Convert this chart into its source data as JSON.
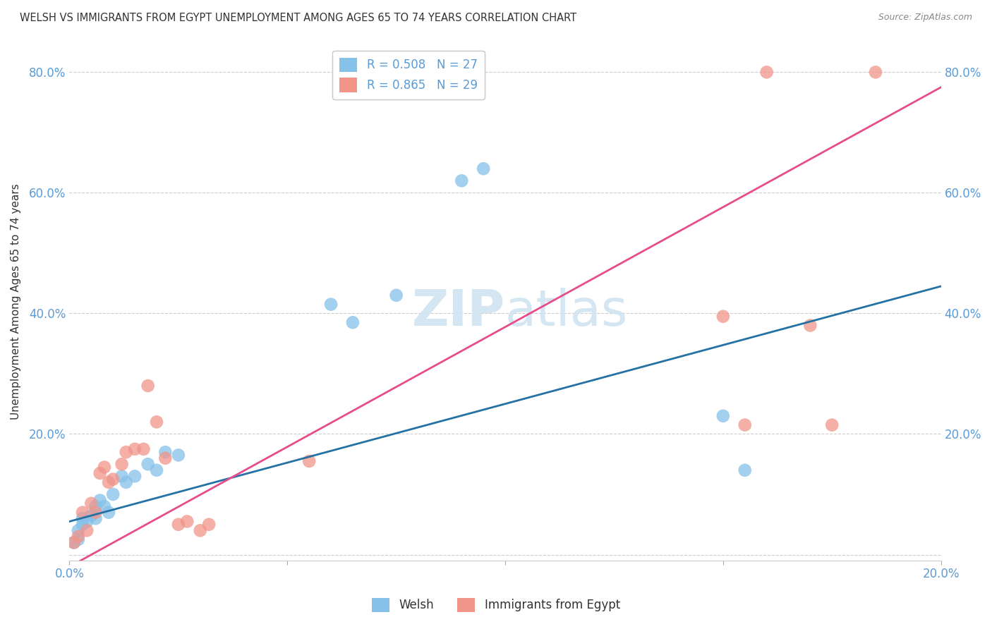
{
  "title": "WELSH VS IMMIGRANTS FROM EGYPT UNEMPLOYMENT AMONG AGES 65 TO 74 YEARS CORRELATION CHART",
  "source": "Source: ZipAtlas.com",
  "ylabel": "Unemployment Among Ages 65 to 74 years",
  "xlim": [
    0.0,
    0.2
  ],
  "ylim": [
    -0.01,
    0.85
  ],
  "x_ticks": [
    0.0,
    0.05,
    0.1,
    0.15,
    0.2
  ],
  "y_ticks": [
    0.0,
    0.2,
    0.4,
    0.6,
    0.8
  ],
  "x_tick_labels": [
    "0.0%",
    "",
    "",
    "",
    "20.0%"
  ],
  "y_tick_labels": [
    "",
    "20.0%",
    "40.0%",
    "60.0%",
    "80.0%"
  ],
  "welsh_color": "#85c1e9",
  "egypt_color": "#f1948a",
  "welsh_line_color": "#2471a3",
  "egypt_line_color": "#e74c8b",
  "welsh_R": 0.508,
  "welsh_N": 27,
  "egypt_R": 0.865,
  "egypt_N": 29,
  "background_color": "#ffffff",
  "grid_color": "#cccccc",
  "tick_color": "#5b9bd5",
  "watermark_color": "#d0e4f0",
  "welsh_x": [
    0.001,
    0.002,
    0.002,
    0.003,
    0.003,
    0.004,
    0.005,
    0.006,
    0.006,
    0.007,
    0.008,
    0.009,
    0.01,
    0.012,
    0.013,
    0.015,
    0.018,
    0.02,
    0.022,
    0.025,
    0.06,
    0.065,
    0.075,
    0.09,
    0.095,
    0.15,
    0.155
  ],
  "welsh_y": [
    0.02,
    0.025,
    0.04,
    0.05,
    0.06,
    0.055,
    0.065,
    0.06,
    0.08,
    0.09,
    0.08,
    0.07,
    0.1,
    0.13,
    0.12,
    0.13,
    0.15,
    0.14,
    0.17,
    0.165,
    0.415,
    0.385,
    0.43,
    0.62,
    0.64,
    0.23,
    0.14
  ],
  "egypt_x": [
    0.001,
    0.002,
    0.003,
    0.004,
    0.005,
    0.006,
    0.007,
    0.008,
    0.009,
    0.01,
    0.012,
    0.013,
    0.015,
    0.017,
    0.018,
    0.02,
    0.022,
    0.025,
    0.027,
    0.03,
    0.032,
    0.055,
    0.08,
    0.15,
    0.155,
    0.16,
    0.17,
    0.175,
    0.185
  ],
  "egypt_y": [
    0.02,
    0.03,
    0.07,
    0.04,
    0.085,
    0.07,
    0.135,
    0.145,
    0.12,
    0.125,
    0.15,
    0.17,
    0.175,
    0.175,
    0.28,
    0.22,
    0.16,
    0.05,
    0.055,
    0.04,
    0.05,
    0.155,
    0.8,
    0.395,
    0.215,
    0.8,
    0.38,
    0.215,
    0.8
  ],
  "welsh_line_x0": 0.0,
  "welsh_line_y0": 0.055,
  "welsh_line_x1": 0.2,
  "welsh_line_y1": 0.445,
  "egypt_line_x0": 0.0,
  "egypt_line_y0": -0.02,
  "egypt_line_x1": 0.2,
  "egypt_line_y1": 0.775
}
